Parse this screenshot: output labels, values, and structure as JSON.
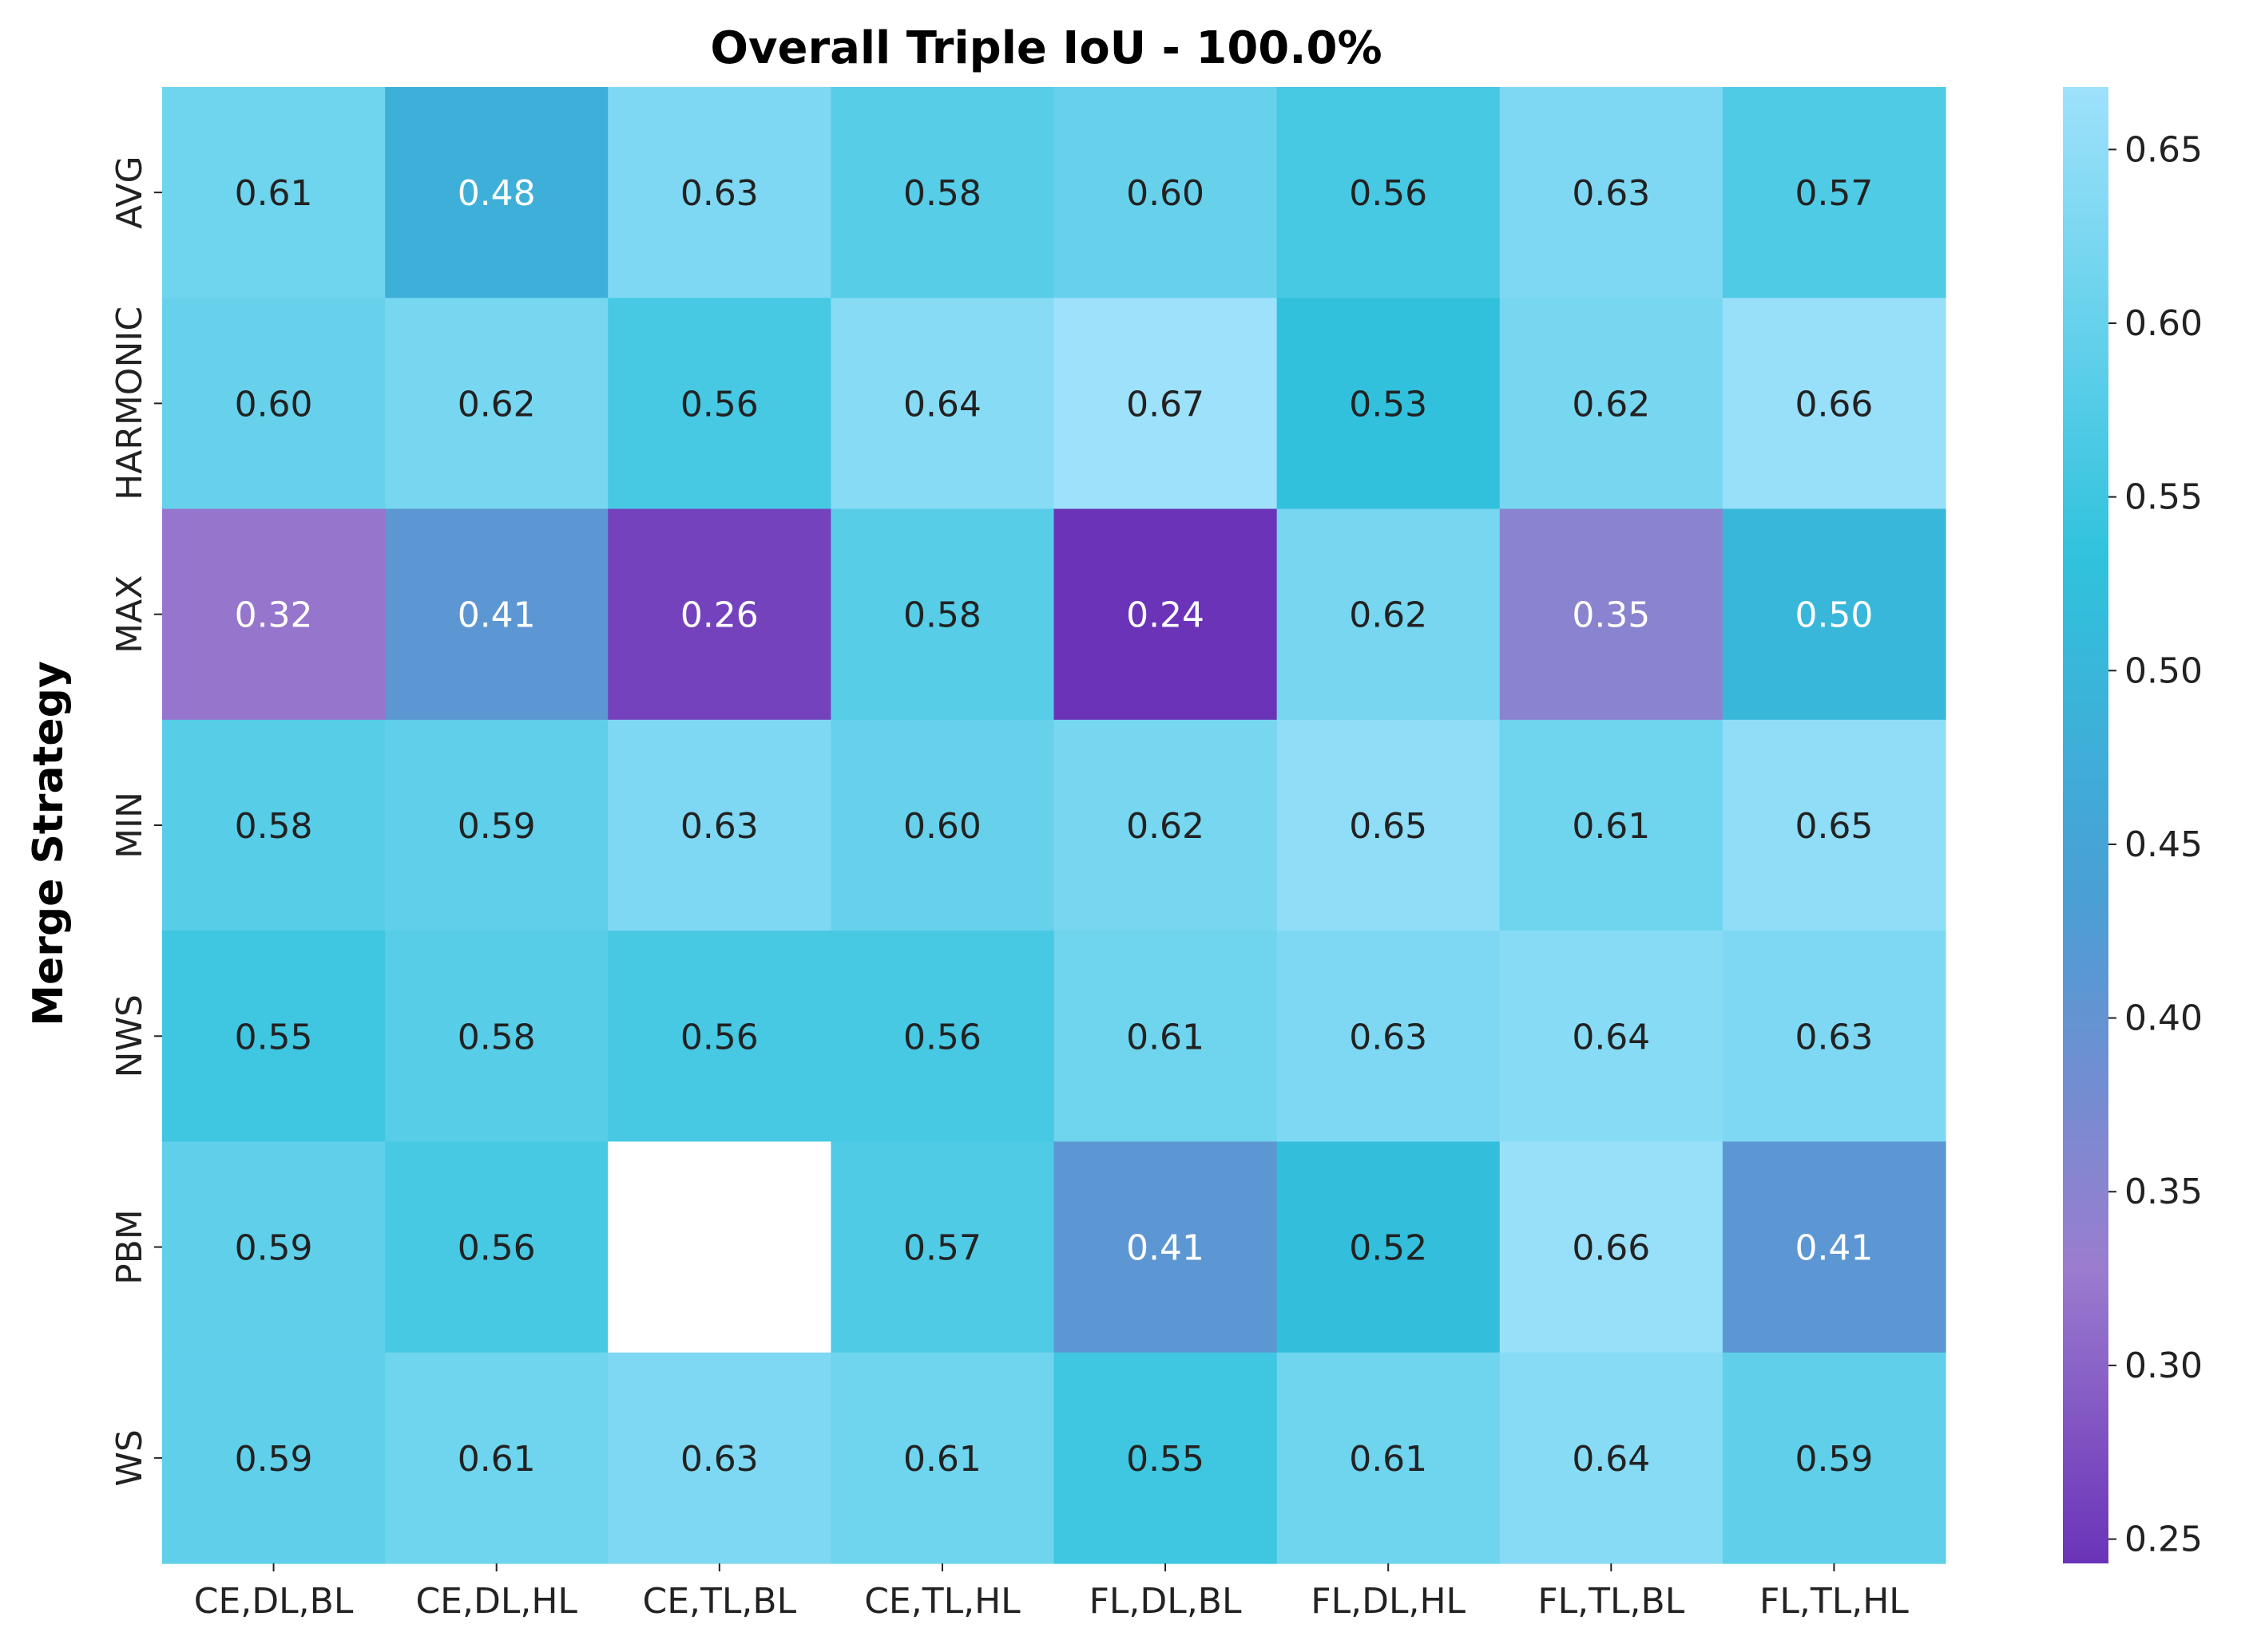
{
  "chart_data": {
    "type": "heatmap",
    "title": "Overall Triple IoU - 100.0%",
    "xlabel": "",
    "ylabel": "Merge Strategy",
    "x_categories": [
      "CE,DL,BL",
      "CE,DL,HL",
      "CE,TL,BL",
      "CE,TL,HL",
      "FL,DL,BL",
      "FL,DL,HL",
      "FL,TL,BL",
      "FL,TL,HL"
    ],
    "y_categories": [
      "AVG",
      "HARMONIC",
      "MAX",
      "MIN",
      "NWS",
      "PBM",
      "WS"
    ],
    "values": [
      [
        0.61,
        0.48,
        0.63,
        0.58,
        0.6,
        0.56,
        0.63,
        0.57
      ],
      [
        0.6,
        0.62,
        0.56,
        0.64,
        0.67,
        0.53,
        0.62,
        0.66
      ],
      [
        0.32,
        0.41,
        0.26,
        0.58,
        0.24,
        0.62,
        0.35,
        0.5
      ],
      [
        0.58,
        0.59,
        0.63,
        0.6,
        0.62,
        0.65,
        0.61,
        0.65
      ],
      [
        0.55,
        0.58,
        0.56,
        0.56,
        0.61,
        0.63,
        0.64,
        0.63
      ],
      [
        0.59,
        0.56,
        null,
        0.57,
        0.41,
        0.52,
        0.66,
        0.41
      ],
      [
        0.59,
        0.61,
        0.63,
        0.61,
        0.55,
        0.61,
        0.64,
        0.59
      ]
    ],
    "colorbar": {
      "range": [
        0.243,
        0.668
      ],
      "ticks": [
        "0.25",
        "0.30",
        "0.35",
        "0.40",
        "0.45",
        "0.50",
        "0.55",
        "0.60",
        "0.65"
      ],
      "tick_values": [
        0.25,
        0.3,
        0.35,
        0.4,
        0.45,
        0.5,
        0.55,
        0.6,
        0.65
      ],
      "colormap": [
        [
          0.0,
          "#6a33b8"
        ],
        [
          0.2,
          "#9b7ccf"
        ],
        [
          0.45,
          "#4a9fd4"
        ],
        [
          0.68,
          "#30c2dd"
        ],
        [
          1.0,
          "#9ee1fb"
        ]
      ]
    },
    "value_format": "2 decimals",
    "grid": false
  }
}
